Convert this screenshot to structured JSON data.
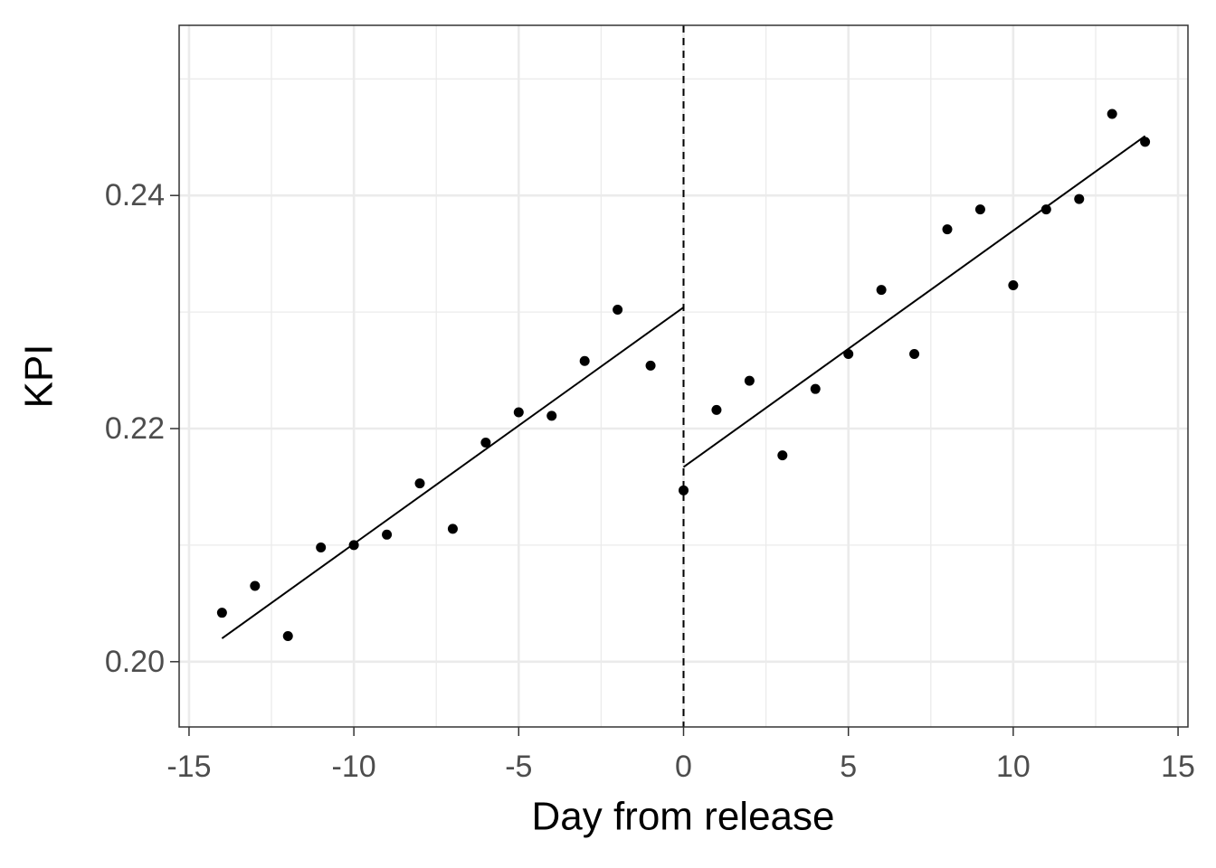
{
  "chart_data": {
    "type": "scatter",
    "x_label": "Day from release",
    "y_label": "KPI",
    "x": [
      -14,
      -13,
      -12,
      -11,
      -10,
      -9,
      -8,
      -7,
      -6,
      -5,
      -4,
      -3,
      -2,
      -1,
      0,
      1,
      2,
      3,
      4,
      5,
      6,
      7,
      8,
      9,
      10,
      11,
      12,
      13,
      14
    ],
    "values": [
      0.2042,
      0.2065,
      0.2022,
      0.2098,
      0.21,
      0.2109,
      0.2153,
      0.2114,
      0.2188,
      0.2214,
      0.2211,
      0.2258,
      0.2302,
      0.2254,
      0.2147,
      0.2216,
      0.2241,
      0.2177,
      0.2234,
      0.2264,
      0.2319,
      0.2264,
      0.2371,
      0.2388,
      0.2323,
      0.2388,
      0.2397,
      0.247,
      0.2446
    ],
    "color": "#000000",
    "fit_lines": [
      {
        "x": [
          -14,
          0
        ],
        "values": [
          0.202,
          0.2304
        ],
        "color": "#000000"
      },
      {
        "x": [
          0,
          14
        ],
        "values": [
          0.2167,
          0.2451
        ],
        "color": "#000000"
      }
    ],
    "vline": 0,
    "xlim": [
      -15.3,
      15.3
    ],
    "ylim": [
      0.1944,
      0.2546
    ],
    "xticks": [
      -15,
      -10,
      -5,
      0,
      5,
      10,
      15
    ],
    "yticks": [
      {
        "value": 0.2,
        "label": "0.20"
      },
      0.22,
      0.24
    ],
    "xminor": [
      -12.5,
      -7.5,
      -2.5,
      2.5,
      7.5,
      12.5
    ],
    "yminor": [
      0.21,
      0.23,
      0.25
    ],
    "grid": true
  }
}
